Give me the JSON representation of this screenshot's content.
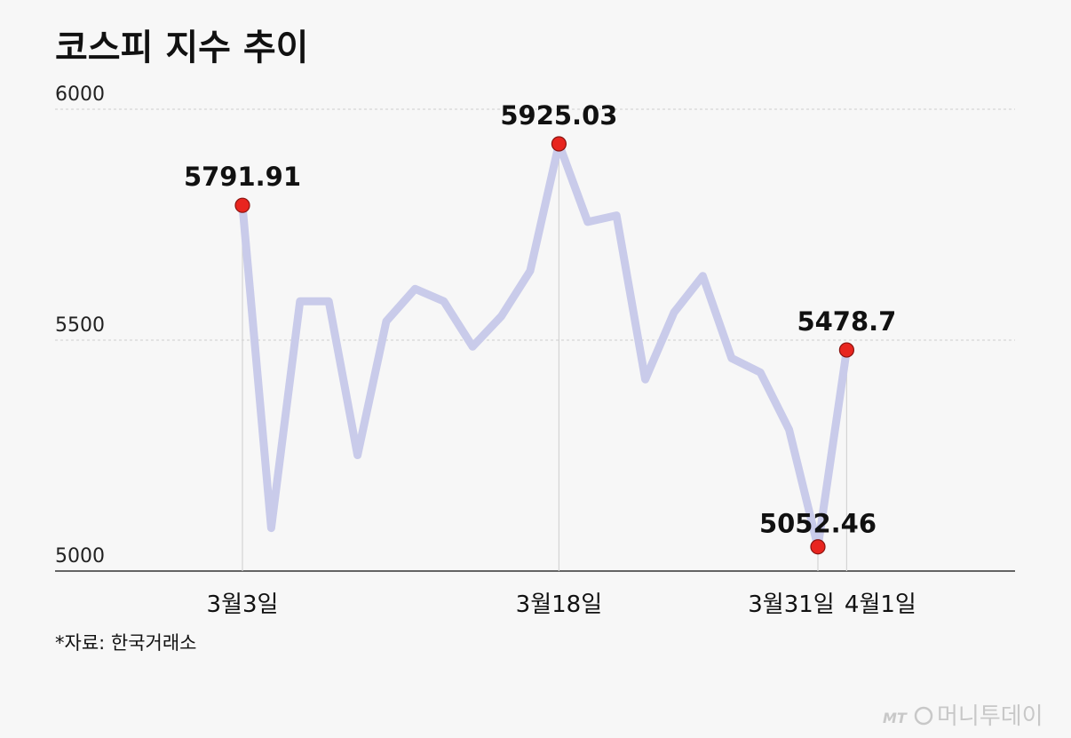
{
  "chart_data": {
    "type": "line",
    "title": "코스피 지수 추이",
    "ylim": [
      5000,
      6000
    ],
    "yticks": [
      6000,
      5500,
      5000
    ],
    "series": [
      {
        "values": [
          5791.91,
          5093,
          5584,
          5584,
          5251,
          5541,
          5611,
          5584,
          5486,
          5552,
          5650,
          5925.03,
          5756,
          5770,
          5415,
          5560,
          5639,
          5461,
          5430,
          5306,
          5052.46,
          5478.7
        ]
      }
    ],
    "x_tick_labels": [
      {
        "index": 0,
        "label": "3월3일"
      },
      {
        "index": 11,
        "label": "3월18일"
      },
      {
        "index": 20,
        "label": "3월31일"
      },
      {
        "index": 21,
        "label": "4월1일"
      }
    ],
    "highlights": [
      {
        "index": 0,
        "label": "5791.91"
      },
      {
        "index": 11,
        "label": "5925.03"
      },
      {
        "index": 20,
        "label": "5052.46"
      },
      {
        "index": 21,
        "label": "5478.7"
      }
    ],
    "grid": true
  },
  "source": "*자료: 한국거래소",
  "logo": {
    "mark": "MT",
    "text": "머니투데이"
  },
  "colors": {
    "line": "#c9cbea",
    "marker": "#e8251f",
    "marker_stroke": "#8a1410",
    "grid": "#cccccc",
    "baseline": "#333333"
  }
}
